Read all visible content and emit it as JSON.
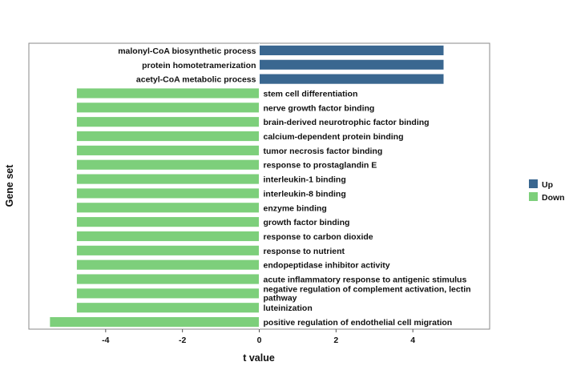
{
  "chart_data": {
    "type": "bar",
    "orientation": "horizontal",
    "xlabel": "t value",
    "ylabel": "Gene set",
    "xlim": [
      -6,
      6
    ],
    "x_ticks": [
      -4,
      -2,
      0,
      2,
      4
    ],
    "x_tick_labels": [
      "-4",
      "-2",
      "0",
      "2",
      "4"
    ],
    "grid": false,
    "legend_position": "right",
    "legend": [
      {
        "name": "Up",
        "color": "#3a6790"
      },
      {
        "name": "Down",
        "color": "#7dcf7b"
      }
    ],
    "bars": [
      {
        "label": "malonyl-CoA biosynthetic process",
        "value": 4.8,
        "group": "Up"
      },
      {
        "label": "protein homotetramerization",
        "value": 4.8,
        "group": "Up"
      },
      {
        "label": "acetyl-CoA metabolic process",
        "value": 4.8,
        "group": "Up"
      },
      {
        "label": "stem cell differentiation",
        "value": -4.75,
        "group": "Down"
      },
      {
        "label": "nerve growth factor binding",
        "value": -4.75,
        "group": "Down"
      },
      {
        "label": "brain-derived neurotrophic factor binding",
        "value": -4.75,
        "group": "Down"
      },
      {
        "label": "calcium-dependent protein binding",
        "value": -4.75,
        "group": "Down"
      },
      {
        "label": "tumor necrosis factor binding",
        "value": -4.75,
        "group": "Down"
      },
      {
        "label": "response to prostaglandin E",
        "value": -4.75,
        "group": "Down"
      },
      {
        "label": "interleukin-1 binding",
        "value": -4.75,
        "group": "Down"
      },
      {
        "label": "interleukin-8 binding",
        "value": -4.75,
        "group": "Down"
      },
      {
        "label": "enzyme binding",
        "value": -4.75,
        "group": "Down"
      },
      {
        "label": "growth factor binding",
        "value": -4.75,
        "group": "Down"
      },
      {
        "label": "response to carbon dioxide",
        "value": -4.75,
        "group": "Down"
      },
      {
        "label": "response to nutrient",
        "value": -4.75,
        "group": "Down"
      },
      {
        "label": "endopeptidase inhibitor activity",
        "value": -4.75,
        "group": "Down"
      },
      {
        "label": "acute inflammatory response to antigenic stimulus",
        "value": -4.75,
        "group": "Down"
      },
      {
        "label": "negative regulation of complement activation, lectin pathway",
        "value": -4.75,
        "group": "Down"
      },
      {
        "label": "luteinization",
        "value": -4.75,
        "group": "Down"
      },
      {
        "label": "positive regulation of endothelial cell migration",
        "value": -5.45,
        "group": "Down"
      }
    ]
  }
}
